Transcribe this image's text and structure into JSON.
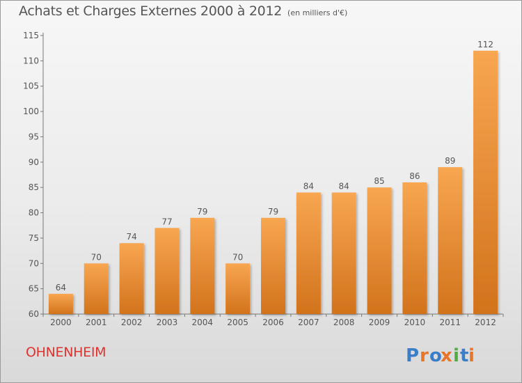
{
  "title": "Achats et Charges Externes 2000 à 2012",
  "unit_note": "(en milliers d'€)",
  "commune": "OHNENHEIM",
  "logo_text": "Proxiti",
  "colors": {
    "bar_light": "#f8a651",
    "bar_dark": "#d2731c",
    "text": "#555555",
    "commune": "#e0322d",
    "logo": [
      "#3a7ec8",
      "#e7752a",
      "#3a7ec8",
      "#e7752a",
      "#4fae3d",
      "#3a7ec8",
      "#e7752a"
    ]
  },
  "chart_data": {
    "type": "bar",
    "title": "Achats et Charges Externes 2000 à 2012",
    "subtitle": "(en milliers d'€)",
    "categories": [
      "2000",
      "2001",
      "2002",
      "2003",
      "2004",
      "2005",
      "2006",
      "2007",
      "2008",
      "2009",
      "2010",
      "2011",
      "2012"
    ],
    "values": [
      64,
      70,
      74,
      77,
      79,
      70,
      79,
      84,
      84,
      85,
      86,
      89,
      112
    ],
    "ylim": [
      60,
      115
    ],
    "yticks": [
      60,
      65,
      70,
      75,
      80,
      85,
      90,
      95,
      100,
      105,
      110,
      115
    ],
    "grid": false,
    "data_labels": true
  }
}
